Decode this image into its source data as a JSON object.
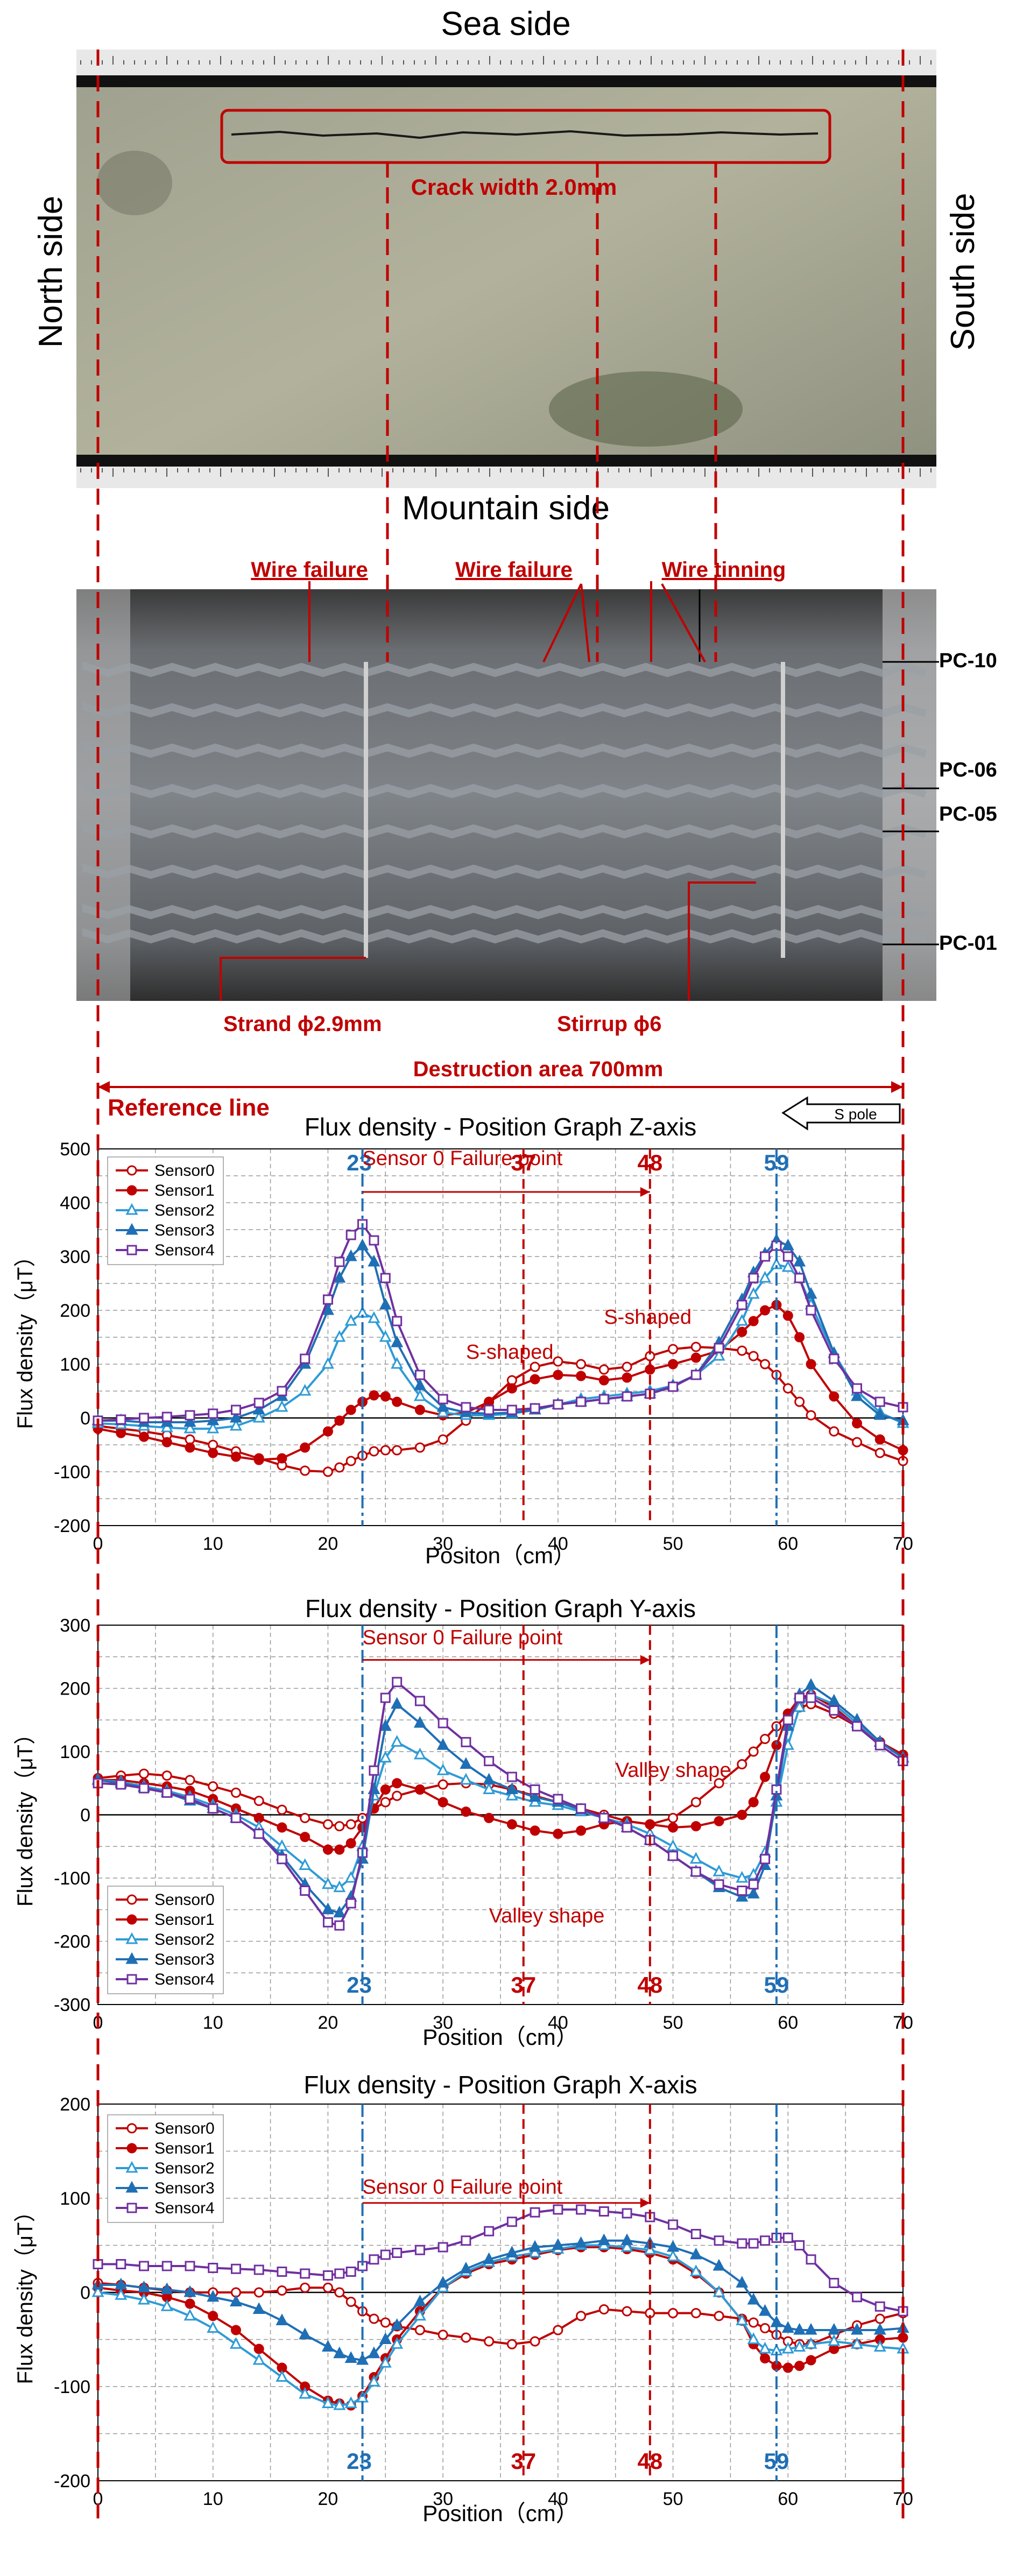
{
  "colors": {
    "red": "#c00000",
    "blue": "#1f6fb5",
    "purple": "#7030a0",
    "dark_red": "#a00000",
    "sensor_blue_light": "#2e9bd6"
  },
  "photo1": {
    "title_top": "Sea side",
    "title_bottom": "Mountain side",
    "left_side": "North side",
    "right_side": "South side",
    "crack_label": "Crack width 2.0mm"
  },
  "photo2": {
    "labels": [
      "Wire failure",
      "Wire failure",
      "Wire tinning",
      "Strand ϕ2.9mm",
      "Stirrup ϕ6"
    ],
    "pc_labels": [
      "PC-10",
      "PC-06",
      "PC-05",
      "PC-01"
    ],
    "destruction": "Destruction area 700mm",
    "reference": "Reference line",
    "spole": "S pole"
  },
  "chart_data": [
    {
      "type": "line",
      "title": "Flux density - Position Graph Z-axis",
      "xlabel": "Positon（cm）",
      "ylabel": "Flux density（μT）",
      "xlim": [
        0,
        70
      ],
      "ylim": [
        -200,
        500
      ],
      "xticks": [
        0,
        10,
        20,
        30,
        40,
        50,
        60,
        70
      ],
      "yticks": [
        -200,
        -100,
        0,
        100,
        200,
        300,
        400,
        500
      ],
      "legend": "top-left",
      "markers": [
        "23",
        "37",
        "48",
        "59"
      ],
      "annotations": [
        "Sensor 0 Failure point",
        "S-shaped",
        "S-shaped"
      ],
      "x": [
        0,
        2,
        4,
        6,
        8,
        10,
        12,
        14,
        16,
        18,
        20,
        21,
        22,
        23,
        24,
        25,
        26,
        28,
        30,
        32,
        34,
        36,
        38,
        40,
        42,
        44,
        46,
        48,
        50,
        52,
        54,
        56,
        57,
        58,
        59,
        60,
        61,
        62,
        64,
        66,
        68,
        70
      ],
      "series": [
        {
          "name": "Sensor0",
          "values": [
            -15,
            -20,
            -25,
            -32,
            -40,
            -50,
            -62,
            -75,
            -88,
            -98,
            -100,
            -92,
            -80,
            -70,
            -62,
            -60,
            -60,
            -55,
            -40,
            -5,
            30,
            70,
            95,
            105,
            100,
            90,
            95,
            115,
            128,
            132,
            130,
            125,
            115,
            100,
            80,
            55,
            30,
            5,
            -25,
            -45,
            -65,
            -80
          ]
        },
        {
          "name": "Sensor1",
          "values": [
            -20,
            -28,
            -35,
            -45,
            -55,
            -65,
            -72,
            -78,
            -75,
            -55,
            -25,
            -5,
            15,
            30,
            42,
            40,
            30,
            15,
            5,
            10,
            30,
            55,
            72,
            80,
            78,
            70,
            75,
            90,
            100,
            112,
            125,
            160,
            180,
            200,
            210,
            190,
            150,
            100,
            40,
            -10,
            -40,
            -60
          ]
        },
        {
          "name": "Sensor2",
          "values": [
            -10,
            -12,
            -15,
            -18,
            -20,
            -20,
            -15,
            0,
            20,
            50,
            100,
            150,
            180,
            195,
            185,
            150,
            100,
            40,
            10,
            5,
            5,
            8,
            15,
            25,
            35,
            40,
            45,
            50,
            60,
            80,
            115,
            180,
            230,
            260,
            285,
            280,
            260,
            210,
            120,
            50,
            10,
            -10
          ]
        },
        {
          "name": "Sensor3",
          "values": [
            -5,
            -5,
            -8,
            -8,
            -8,
            -5,
            0,
            15,
            40,
            100,
            200,
            260,
            300,
            320,
            290,
            210,
            140,
            60,
            20,
            10,
            8,
            10,
            15,
            25,
            30,
            35,
            40,
            45,
            60,
            80,
            140,
            220,
            270,
            305,
            330,
            320,
            290,
            230,
            120,
            40,
            5,
            -5
          ]
        },
        {
          "name": "Sensor4",
          "values": [
            -5,
            -3,
            0,
            2,
            5,
            8,
            15,
            28,
            50,
            110,
            220,
            290,
            340,
            360,
            330,
            260,
            180,
            80,
            35,
            20,
            15,
            15,
            18,
            25,
            30,
            35,
            40,
            45,
            58,
            80,
            130,
            210,
            260,
            300,
            320,
            300,
            260,
            200,
            110,
            55,
            30,
            20
          ]
        }
      ]
    },
    {
      "type": "line",
      "title": "Flux density - Position Graph Y-axis",
      "xlabel": "Position（cm）",
      "ylabel": "Flux density（μT）",
      "xlim": [
        0,
        70
      ],
      "ylim": [
        -300,
        300
      ],
      "xticks": [
        0,
        10,
        20,
        30,
        40,
        50,
        60,
        70
      ],
      "yticks": [
        -300,
        -200,
        -100,
        0,
        100,
        200,
        300
      ],
      "legend": "bottom-left",
      "markers": [
        "23",
        "37",
        "48",
        "59"
      ],
      "annotations": [
        "Sensor 0 Failure point",
        "Valley shape",
        "Valley shape"
      ],
      "x": [
        0,
        2,
        4,
        6,
        8,
        10,
        12,
        14,
        16,
        18,
        20,
        21,
        22,
        23,
        24,
        25,
        26,
        28,
        30,
        32,
        34,
        36,
        38,
        40,
        42,
        44,
        46,
        48,
        50,
        52,
        54,
        56,
        57,
        58,
        59,
        60,
        61,
        62,
        64,
        66,
        68,
        70
      ],
      "series": [
        {
          "name": "Sensor0",
          "values": [
            58,
            62,
            65,
            62,
            55,
            45,
            35,
            22,
            8,
            -5,
            -15,
            -18,
            -15,
            -5,
            10,
            20,
            30,
            40,
            48,
            50,
            48,
            40,
            30,
            20,
            10,
            0,
            -10,
            -15,
            -5,
            20,
            50,
            80,
            100,
            120,
            140,
            160,
            170,
            175,
            160,
            140,
            115,
            95
          ]
        },
        {
          "name": "Sensor1",
          "values": [
            55,
            55,
            50,
            45,
            38,
            25,
            10,
            -5,
            -20,
            -35,
            -55,
            -55,
            -45,
            -20,
            10,
            40,
            50,
            40,
            20,
            5,
            -5,
            -15,
            -25,
            -30,
            -25,
            -15,
            -10,
            -15,
            -20,
            -18,
            -10,
            0,
            20,
            60,
            110,
            160,
            185,
            190,
            170,
            140,
            115,
            95
          ]
        },
        {
          "name": "Sensor2",
          "values": [
            55,
            52,
            45,
            38,
            28,
            15,
            0,
            -20,
            -50,
            -80,
            -110,
            -115,
            -100,
            -50,
            30,
            90,
            115,
            95,
            70,
            55,
            40,
            30,
            20,
            15,
            5,
            -5,
            -15,
            -30,
            -50,
            -70,
            -90,
            -100,
            -95,
            -60,
            20,
            110,
            170,
            190,
            175,
            145,
            115,
            90
          ]
        },
        {
          "name": "Sensor3",
          "values": [
            55,
            50,
            43,
            35,
            22,
            10,
            -5,
            -30,
            -65,
            -110,
            -150,
            -155,
            -130,
            -70,
            40,
            140,
            175,
            145,
            110,
            80,
            55,
            40,
            28,
            20,
            8,
            -5,
            -20,
            -40,
            -65,
            -90,
            -115,
            -130,
            -125,
            -80,
            30,
            140,
            190,
            205,
            180,
            150,
            115,
            90
          ]
        },
        {
          "name": "Sensor4",
          "values": [
            50,
            48,
            42,
            35,
            25,
            10,
            -5,
            -30,
            -70,
            -120,
            -170,
            -175,
            -140,
            -60,
            70,
            185,
            210,
            180,
            145,
            115,
            85,
            60,
            40,
            25,
            10,
            -5,
            -20,
            -40,
            -65,
            -90,
            -110,
            -120,
            -110,
            -70,
            40,
            150,
            185,
            185,
            165,
            140,
            110,
            85
          ]
        }
      ]
    },
    {
      "type": "line",
      "title": "Flux density - Position Graph X-axis",
      "xlabel": "Position（cm）",
      "ylabel": "Flux density（μT）",
      "xlim": [
        0,
        70
      ],
      "ylim": [
        -200,
        200
      ],
      "xticks": [
        0,
        10,
        20,
        30,
        40,
        50,
        60,
        70
      ],
      "yticks": [
        -200,
        -100,
        0,
        100,
        200
      ],
      "legend": "top-left",
      "markers": [
        "23",
        "37",
        "48",
        "59"
      ],
      "annotations": [
        "Sensor 0 Failure point"
      ],
      "x": [
        0,
        2,
        4,
        6,
        8,
        10,
        12,
        14,
        16,
        18,
        20,
        21,
        22,
        23,
        24,
        25,
        26,
        28,
        30,
        32,
        34,
        36,
        38,
        40,
        42,
        44,
        46,
        48,
        50,
        52,
        54,
        56,
        57,
        58,
        59,
        60,
        61,
        62,
        64,
        66,
        68,
        70
      ],
      "series": [
        {
          "name": "Sensor0",
          "values": [
            10,
            8,
            5,
            2,
            0,
            0,
            0,
            0,
            2,
            5,
            5,
            0,
            -10,
            -20,
            -28,
            -32,
            -36,
            -40,
            -45,
            -48,
            -52,
            -55,
            -52,
            -40,
            -25,
            -18,
            -20,
            -22,
            -22,
            -22,
            -25,
            -28,
            -32,
            -38,
            -45,
            -52,
            -55,
            -55,
            -45,
            -35,
            -28,
            -22
          ]
        },
        {
          "name": "Sensor1",
          "values": [
            5,
            2,
            0,
            -5,
            -12,
            -25,
            -40,
            -60,
            -80,
            -100,
            -115,
            -118,
            -120,
            -110,
            -90,
            -70,
            -50,
            -20,
            5,
            20,
            30,
            35,
            40,
            45,
            48,
            48,
            46,
            42,
            35,
            20,
            0,
            -30,
            -55,
            -70,
            -78,
            -80,
            -78,
            -72,
            -60,
            -55,
            -50,
            -48
          ]
        },
        {
          "name": "Sensor2",
          "values": [
            0,
            -3,
            -8,
            -15,
            -25,
            -38,
            -55,
            -72,
            -90,
            -108,
            -118,
            -120,
            -118,
            -112,
            -95,
            -75,
            -55,
            -25,
            5,
            22,
            32,
            38,
            42,
            46,
            50,
            50,
            48,
            45,
            38,
            22,
            0,
            -30,
            -50,
            -60,
            -62,
            -60,
            -58,
            -55,
            -52,
            -55,
            -58,
            -60
          ]
        },
        {
          "name": "Sensor3",
          "values": [
            8,
            8,
            5,
            3,
            0,
            -5,
            -10,
            -18,
            -30,
            -45,
            -58,
            -65,
            -70,
            -72,
            -65,
            -50,
            -35,
            -10,
            10,
            25,
            35,
            42,
            48,
            50,
            52,
            55,
            55,
            52,
            48,
            40,
            28,
            10,
            -8,
            -20,
            -32,
            -38,
            -40,
            -40,
            -40,
            -40,
            -40,
            -38
          ]
        },
        {
          "name": "Sensor4",
          "values": [
            30,
            30,
            28,
            28,
            28,
            26,
            25,
            24,
            22,
            20,
            18,
            20,
            22,
            28,
            35,
            40,
            42,
            45,
            48,
            55,
            65,
            75,
            85,
            88,
            88,
            86,
            84,
            80,
            72,
            62,
            55,
            52,
            52,
            55,
            58,
            58,
            50,
            35,
            10,
            -5,
            -15,
            -20
          ]
        }
      ]
    }
  ]
}
